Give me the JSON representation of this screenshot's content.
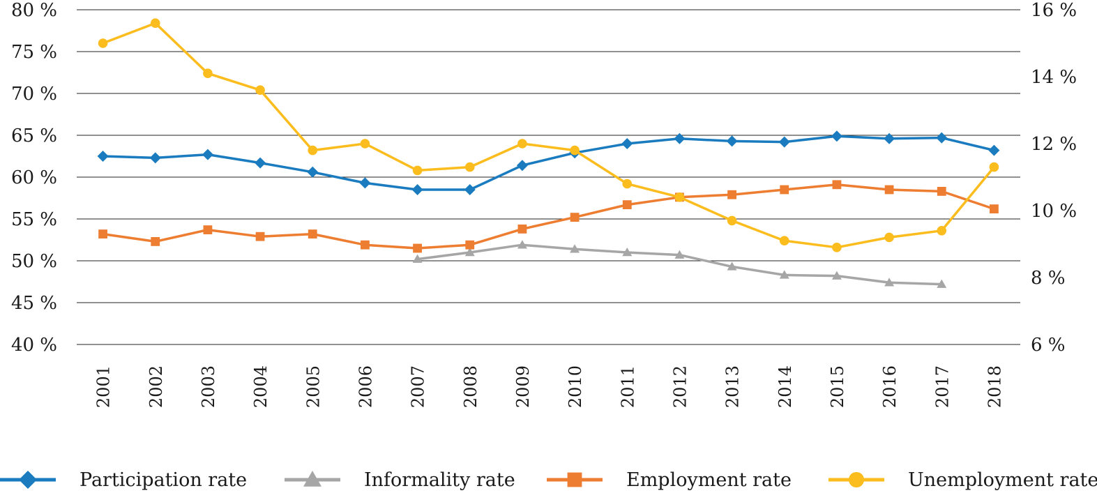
{
  "chart_data": {
    "type": "line",
    "categories": [
      "2001",
      "2002",
      "2003",
      "2004",
      "2005",
      "2006",
      "2007",
      "2008",
      "2009",
      "2010",
      "2011",
      "2012",
      "2013",
      "2014",
      "2015",
      "2016",
      "2017",
      "2018"
    ],
    "y_left": {
      "min": 40,
      "max": 80,
      "ticks": [
        40,
        45,
        50,
        55,
        60,
        65,
        70,
        75,
        80
      ],
      "tick_labels": [
        "40 %",
        "45 %",
        "50 %",
        "55 %",
        "60 %",
        "65 %",
        "70 %",
        "75 %",
        "80 %"
      ]
    },
    "y_right": {
      "min": 6,
      "max": 16,
      "ticks": [
        6,
        8,
        10,
        12,
        14,
        16
      ],
      "tick_labels": [
        "6 %",
        "8 %",
        "10 %",
        "12 %",
        "14 %",
        "16 %"
      ]
    },
    "grid": true,
    "legend_position": "bottom",
    "series": [
      {
        "name": "Participation rate",
        "axis": "left",
        "color": "#1a7bbf",
        "marker": "diamond",
        "values": [
          62.5,
          62.3,
          62.7,
          61.7,
          60.6,
          59.3,
          58.5,
          58.5,
          61.4,
          62.9,
          64.0,
          64.6,
          64.3,
          64.2,
          64.9,
          64.6,
          64.7,
          63.2
        ]
      },
      {
        "name": "Informality rate",
        "axis": "left",
        "color": "#a6a6a6",
        "marker": "triangle",
        "values": [
          null,
          null,
          null,
          null,
          null,
          null,
          50.2,
          51.0,
          51.9,
          51.4,
          51.0,
          50.7,
          49.3,
          48.3,
          48.2,
          47.4,
          47.2,
          null
        ]
      },
      {
        "name": "Employment rate",
        "axis": "left",
        "color": "#ed7d31",
        "marker": "square",
        "values": [
          53.2,
          52.3,
          53.7,
          52.9,
          53.2,
          51.9,
          51.5,
          51.9,
          53.8,
          55.2,
          56.7,
          57.6,
          57.9,
          58.5,
          59.1,
          58.5,
          58.3,
          56.2
        ]
      },
      {
        "name": "Unemployment rate",
        "axis": "right",
        "color": "#fbbc1e",
        "marker": "circle",
        "values": [
          15.0,
          15.6,
          14.1,
          13.6,
          11.8,
          12.0,
          11.2,
          11.3,
          12.0,
          11.8,
          10.8,
          10.4,
          9.7,
          9.1,
          8.9,
          9.2,
          9.4,
          11.3
        ]
      }
    ]
  }
}
